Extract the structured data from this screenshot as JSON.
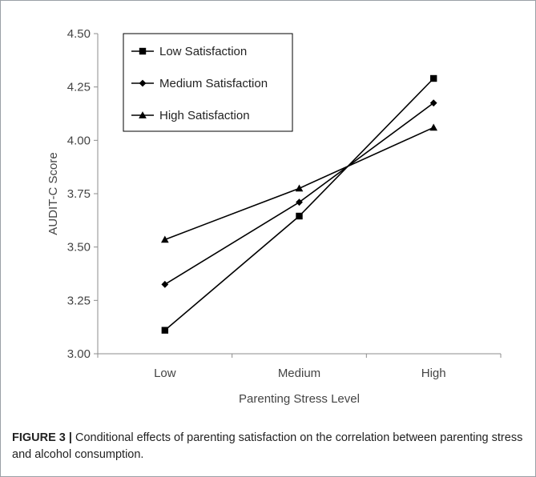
{
  "caption": {
    "label": "FIGURE 3 |",
    "text": " Conditional effects of parenting satisfaction on the correlation between parenting stress and alcohol consumption."
  },
  "colors": {
    "line": "#000000",
    "axis": "#8c8c8c",
    "border": "#9aa0a6"
  },
  "chart_data": {
    "type": "line",
    "categories": [
      "Low",
      "Medium",
      "High"
    ],
    "xlabel": "Parenting Stress Level",
    "ylabel": "AUDIT-C Score",
    "ylim": [
      3.0,
      4.5
    ],
    "yticks": [
      "3.00",
      "3.25",
      "3.50",
      "3.75",
      "4.00",
      "4.25",
      "4.50"
    ],
    "grid": false,
    "legend_position": "top-left",
    "series": [
      {
        "name": "Low Satisfaction",
        "marker": "square",
        "values": [
          3.11,
          3.645,
          4.29
        ]
      },
      {
        "name": "Medium Satisfaction",
        "marker": "diamond",
        "values": [
          3.325,
          3.71,
          4.175
        ]
      },
      {
        "name": "High Satisfaction",
        "marker": "triangle",
        "values": [
          3.535,
          3.775,
          4.06
        ]
      }
    ]
  }
}
